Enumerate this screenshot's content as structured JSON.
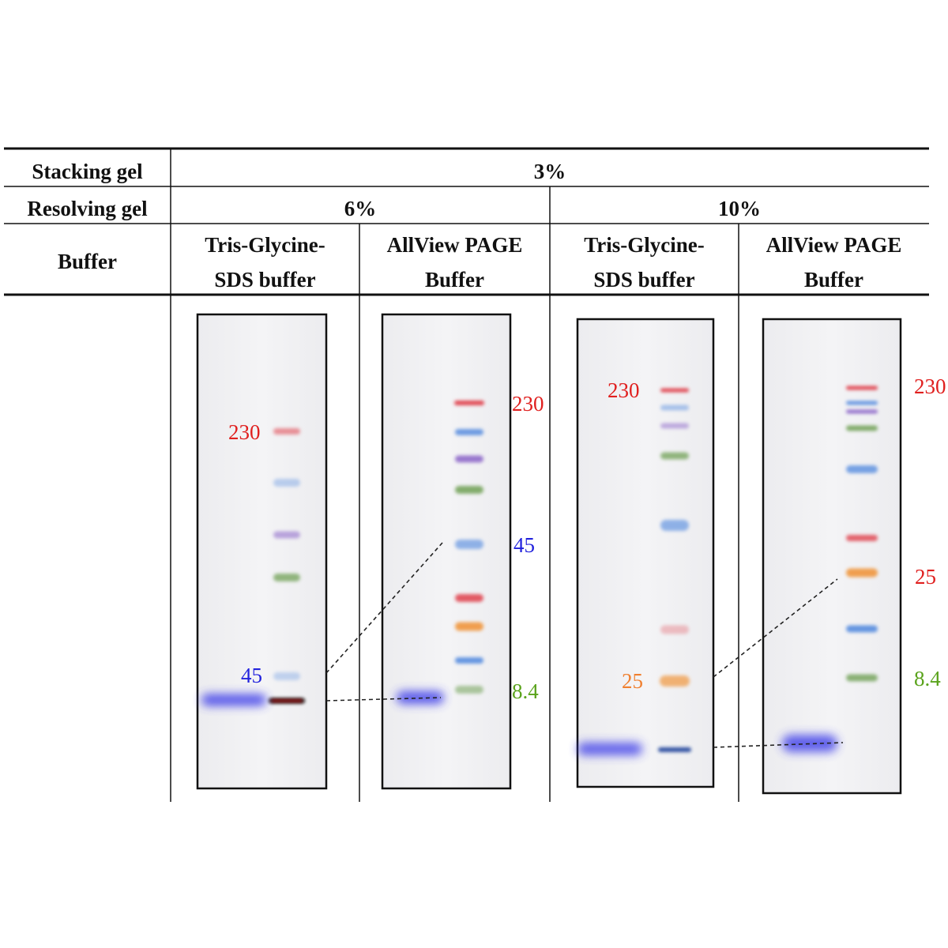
{
  "table": {
    "row_labels": {
      "stacking": "Stacking gel",
      "resolving": "Resolving gel",
      "buffer": "Buffer"
    },
    "stacking_value": "3%",
    "resolving_values": [
      "6%",
      "10%"
    ],
    "buffers": [
      {
        "line1": "Tris-Glycine-",
        "line2": "SDS buffer"
      },
      {
        "line1": "AllView PAGE",
        "line2": "Buffer"
      },
      {
        "line1": "Tris-Glycine-",
        "line2": "SDS buffer"
      },
      {
        "line1": "AllView PAGE",
        "line2": "Buffer"
      }
    ]
  },
  "gels": [
    {
      "labels": [
        {
          "text": "230",
          "color": "#e0201f"
        },
        {
          "text": "45",
          "color": "#2222dd"
        }
      ]
    },
    {
      "labels": [
        {
          "text": "230",
          "color": "#e0201f"
        },
        {
          "text": "45",
          "color": "#2222dd"
        },
        {
          "text": "8.4",
          "color": "#5aa31c"
        }
      ]
    },
    {
      "labels": [
        {
          "text": "230",
          "color": "#e0201f"
        },
        {
          "text": "25",
          "color": "#f08030"
        }
      ]
    },
    {
      "labels": [
        {
          "text": "230",
          "color": "#e0201f"
        },
        {
          "text": "25",
          "color": "#e0201f"
        },
        {
          "text": "8.4",
          "color": "#5aa31c"
        }
      ]
    }
  ],
  "band_colors": {
    "red": "#e0404c",
    "blue": "#4d86de",
    "purple": "#8a63c8",
    "green": "#6fa055",
    "orange": "#f0963c",
    "dye": "#3a3ae8"
  }
}
